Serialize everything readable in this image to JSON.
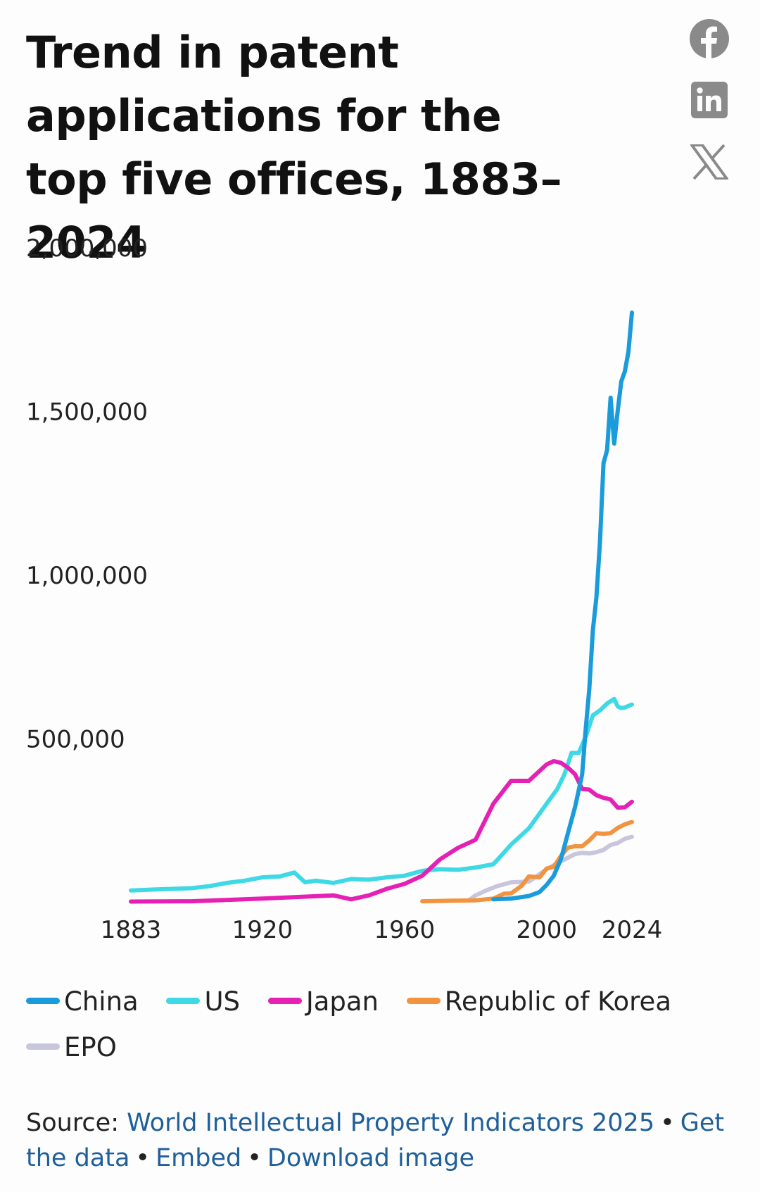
{
  "title": "Trend in patent applications for the top five offices, 1883–2024",
  "share": {
    "facebook_icon": "facebook-icon",
    "linkedin_icon": "linkedin-icon",
    "x_icon": "x-icon"
  },
  "chart_data": {
    "type": "line",
    "title": "Trend in patent applications for the top five offices, 1883–2024",
    "xlabel": "",
    "ylabel": "",
    "xlim": [
      1883,
      2024
    ],
    "ylim": [
      0,
      2000000
    ],
    "x_ticks": [
      1883,
      1920,
      1960,
      2000,
      2024
    ],
    "y_ticks": [
      500000,
      1000000,
      1500000,
      2000000
    ],
    "y_tick_labels": [
      "500,000",
      "1,000,000",
      "1,500,000",
      "2,000,000"
    ],
    "grid": false,
    "legend_position": "bottom",
    "series": [
      {
        "name": "China",
        "color": "#1a9bdc",
        "points": [
          [
            1985,
            8000
          ],
          [
            1990,
            10000
          ],
          [
            1995,
            18000
          ],
          [
            1998,
            30000
          ],
          [
            2000,
            52000
          ],
          [
            2002,
            80000
          ],
          [
            2004,
            130000
          ],
          [
            2006,
            210000
          ],
          [
            2008,
            290000
          ],
          [
            2010,
            390000
          ],
          [
            2011,
            530000
          ],
          [
            2012,
            650000
          ],
          [
            2013,
            830000
          ],
          [
            2014,
            930000
          ],
          [
            2015,
            1100000
          ],
          [
            2016,
            1340000
          ],
          [
            2017,
            1380000
          ],
          [
            2018,
            1540000
          ],
          [
            2019,
            1400000
          ],
          [
            2020,
            1500000
          ],
          [
            2021,
            1590000
          ],
          [
            2022,
            1620000
          ],
          [
            2023,
            1680000
          ],
          [
            2024,
            1800000
          ]
        ]
      },
      {
        "name": "US",
        "color": "#3fd9e6",
        "points": [
          [
            1883,
            35000
          ],
          [
            1890,
            38000
          ],
          [
            1900,
            42000
          ],
          [
            1905,
            48000
          ],
          [
            1910,
            58000
          ],
          [
            1915,
            65000
          ],
          [
            1920,
            75000
          ],
          [
            1925,
            78000
          ],
          [
            1929,
            90000
          ],
          [
            1932,
            60000
          ],
          [
            1935,
            65000
          ],
          [
            1940,
            58000
          ],
          [
            1945,
            70000
          ],
          [
            1950,
            68000
          ],
          [
            1955,
            75000
          ],
          [
            1960,
            80000
          ],
          [
            1965,
            95000
          ],
          [
            1970,
            100000
          ],
          [
            1975,
            98000
          ],
          [
            1980,
            105000
          ],
          [
            1985,
            115000
          ],
          [
            1990,
            175000
          ],
          [
            1995,
            225000
          ],
          [
            2000,
            300000
          ],
          [
            2003,
            345000
          ],
          [
            2005,
            390000
          ],
          [
            2007,
            455000
          ],
          [
            2009,
            455000
          ],
          [
            2011,
            505000
          ],
          [
            2013,
            570000
          ],
          [
            2015,
            585000
          ],
          [
            2017,
            606000
          ],
          [
            2019,
            620000
          ],
          [
            2020,
            597000
          ],
          [
            2021,
            592000
          ],
          [
            2022,
            594000
          ],
          [
            2024,
            603000
          ]
        ]
      },
      {
        "name": "Japan",
        "color": "#e421b4",
        "points": [
          [
            1883,
            1000
          ],
          [
            1900,
            2000
          ],
          [
            1920,
            10000
          ],
          [
            1930,
            15000
          ],
          [
            1940,
            20000
          ],
          [
            1945,
            8000
          ],
          [
            1950,
            20000
          ],
          [
            1955,
            40000
          ],
          [
            1960,
            55000
          ],
          [
            1965,
            80000
          ],
          [
            1970,
            130000
          ],
          [
            1975,
            165000
          ],
          [
            1980,
            190000
          ],
          [
            1985,
            300000
          ],
          [
            1990,
            370000
          ],
          [
            1995,
            370000
          ],
          [
            2000,
            420000
          ],
          [
            2002,
            430000
          ],
          [
            2004,
            425000
          ],
          [
            2006,
            410000
          ],
          [
            2008,
            390000
          ],
          [
            2010,
            345000
          ],
          [
            2012,
            343000
          ],
          [
            2014,
            326000
          ],
          [
            2016,
            318000
          ],
          [
            2018,
            313000
          ],
          [
            2020,
            288000
          ],
          [
            2022,
            289000
          ],
          [
            2024,
            306000
          ]
        ]
      },
      {
        "name": "Republic of Korea",
        "color": "#f2933f",
        "points": [
          [
            1965,
            2000
          ],
          [
            1970,
            3000
          ],
          [
            1975,
            4000
          ],
          [
            1980,
            5000
          ],
          [
            1985,
            10000
          ],
          [
            1988,
            25000
          ],
          [
            1990,
            26000
          ],
          [
            1993,
            50000
          ],
          [
            1995,
            78000
          ],
          [
            1998,
            75000
          ],
          [
            2000,
            102000
          ],
          [
            2002,
            107000
          ],
          [
            2004,
            140000
          ],
          [
            2006,
            166000
          ],
          [
            2008,
            170000
          ],
          [
            2010,
            170000
          ],
          [
            2012,
            188000
          ],
          [
            2014,
            210000
          ],
          [
            2016,
            208000
          ],
          [
            2018,
            210000
          ],
          [
            2020,
            226000
          ],
          [
            2022,
            237000
          ],
          [
            2024,
            244000
          ]
        ]
      },
      {
        "name": "EPO",
        "color": "#c8c6dc",
        "points": [
          [
            1978,
            4000
          ],
          [
            1980,
            20000
          ],
          [
            1983,
            35000
          ],
          [
            1986,
            48000
          ],
          [
            1990,
            60000
          ],
          [
            1995,
            62000
          ],
          [
            2000,
            100000
          ],
          [
            2003,
            118000
          ],
          [
            2006,
            135000
          ],
          [
            2008,
            146000
          ],
          [
            2010,
            150000
          ],
          [
            2012,
            148000
          ],
          [
            2014,
            152000
          ],
          [
            2016,
            159000
          ],
          [
            2018,
            174000
          ],
          [
            2020,
            180000
          ],
          [
            2022,
            193000
          ],
          [
            2024,
            199000
          ]
        ]
      }
    ]
  },
  "legend": {
    "items": [
      {
        "label": "China",
        "color": "#1a9bdc"
      },
      {
        "label": "US",
        "color": "#3fd9e6"
      },
      {
        "label": "Japan",
        "color": "#e421b4"
      },
      {
        "label": "Republic of Korea",
        "color": "#f2933f"
      },
      {
        "label": "EPO",
        "color": "#c8c6dc"
      }
    ]
  },
  "source": {
    "prefix": "Source:",
    "link_label": "World Intellectual Property Indicators 2025",
    "get_data": "Get the data",
    "embed": "Embed",
    "download": "Download image",
    "separator": "•"
  }
}
